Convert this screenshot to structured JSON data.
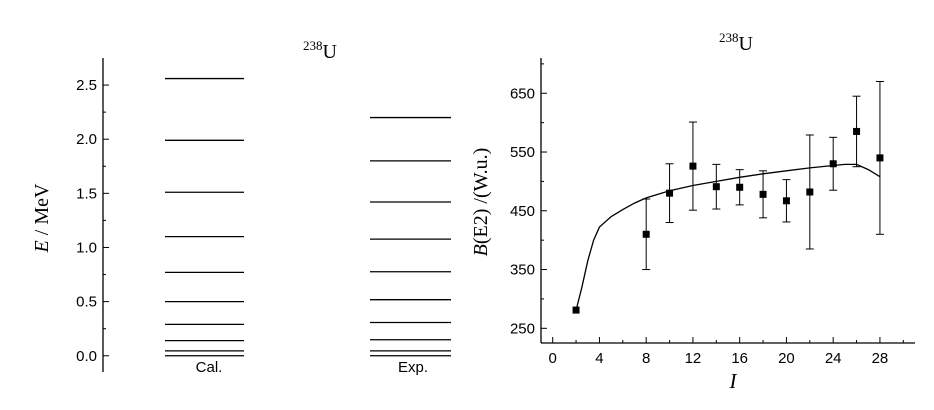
{
  "chart_data": [
    {
      "type": "level-scheme",
      "title_nucleus": "U",
      "title_mass": "238",
      "ylabel_symbol": "E",
      "ylabel_unit": " / MeV",
      "ylim": [
        -0.15,
        2.75
      ],
      "yticks": [
        "0.0",
        "0.5",
        "1.0",
        "1.5",
        "2.0",
        "2.5"
      ],
      "columns": [
        {
          "label": "Cal.",
          "levels": [
            0.0,
            0.045,
            0.14,
            0.29,
            0.5,
            0.77,
            1.1,
            1.51,
            1.99,
            2.56
          ]
        },
        {
          "label": "Exp.",
          "levels": [
            0.0,
            0.045,
            0.148,
            0.307,
            0.518,
            0.776,
            1.077,
            1.42,
            1.8,
            2.2
          ]
        }
      ]
    },
    {
      "type": "scatter+line",
      "title_nucleus": "U",
      "title_mass": "238",
      "xlabel": "I",
      "ylabel_symbol": "B",
      "ylabel_rest": "(E2) /(W.u.)",
      "xlim": [
        -1,
        31
      ],
      "ylim": [
        225,
        710
      ],
      "xticks": [
        "0",
        "4",
        "8",
        "12",
        "16",
        "20",
        "24",
        "28"
      ],
      "yticks": [
        "250",
        "350",
        "450",
        "550",
        "650"
      ],
      "points": [
        {
          "x": 2,
          "y": 281,
          "err": 0
        },
        {
          "x": 8,
          "y": 410,
          "err": 60
        },
        {
          "x": 10,
          "y": 480,
          "err": 50
        },
        {
          "x": 12,
          "y": 526,
          "err": 75
        },
        {
          "x": 14,
          "y": 491,
          "err": 38
        },
        {
          "x": 16,
          "y": 490,
          "err": 30
        },
        {
          "x": 18,
          "y": 478,
          "err": 40
        },
        {
          "x": 20,
          "y": 467,
          "err": 36
        },
        {
          "x": 22,
          "y": 482,
          "err": 97
        },
        {
          "x": 24,
          "y": 530,
          "err": 45
        },
        {
          "x": 26,
          "y": 585,
          "err": 60
        },
        {
          "x": 28,
          "y": 540,
          "err": 130
        }
      ],
      "curve": [
        [
          2,
          281
        ],
        [
          2.5,
          320
        ],
        [
          3,
          365
        ],
        [
          3.5,
          400
        ],
        [
          4,
          422
        ],
        [
          5,
          440
        ],
        [
          6,
          452
        ],
        [
          7,
          463
        ],
        [
          8,
          472
        ],
        [
          10,
          484
        ],
        [
          12,
          493
        ],
        [
          14,
          500
        ],
        [
          16,
          507
        ],
        [
          18,
          513
        ],
        [
          20,
          518
        ],
        [
          22,
          523
        ],
        [
          24,
          527
        ],
        [
          25,
          529
        ],
        [
          26,
          529
        ],
        [
          27,
          520
        ],
        [
          28,
          508
        ]
      ]
    }
  ]
}
